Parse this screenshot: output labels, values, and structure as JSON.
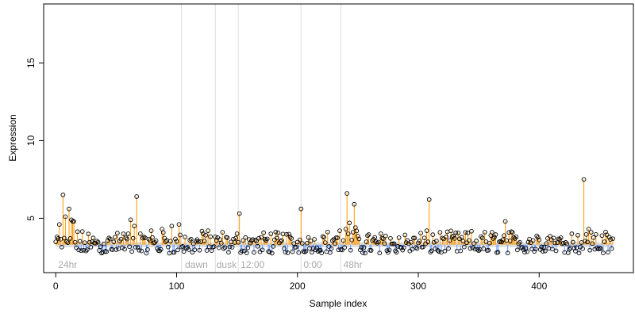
{
  "chart_data": {
    "type": "scatter",
    "title": "",
    "xlabel": "Sample index",
    "ylabel": "Expression",
    "xlim": [
      -10,
      478
    ],
    "ylim": [
      1.5,
      18.8
    ],
    "x_ticks": [
      0,
      100,
      200,
      300,
      400
    ],
    "y_ticks": [
      5,
      10,
      15
    ],
    "baseline": 3.3,
    "grid": false,
    "group_boundaries": [
      104,
      132,
      151,
      203,
      236
    ],
    "group_labels": [
      {
        "label": "24hr",
        "x": 2
      },
      {
        "label": "dawn",
        "x": 107
      },
      {
        "label": "dusk",
        "x": 133
      },
      {
        "label": "12:00",
        "x": 153
      },
      {
        "label": "0:00",
        "x": 205
      },
      {
        "label": "48hr",
        "x": 238
      }
    ],
    "colors": {
      "above_baseline": "#ff9900",
      "below_baseline": "#6699ff",
      "baseline_band": "#dcdcdc",
      "separator": "#dddddd",
      "points": "#000000",
      "group_label": "#aaaaaa"
    },
    "n_points": 462,
    "highlight_points": [
      {
        "x": 2,
        "y": 3.7
      },
      {
        "x": 3,
        "y": 4.6
      },
      {
        "x": 6,
        "y": 6.5
      },
      {
        "x": 8,
        "y": 5.1
      },
      {
        "x": 11,
        "y": 5.6
      },
      {
        "x": 12,
        "y": 3.7
      },
      {
        "x": 13,
        "y": 4.9
      },
      {
        "x": 14,
        "y": 4.8
      },
      {
        "x": 15,
        "y": 4.8
      },
      {
        "x": 60,
        "y": 4.0
      },
      {
        "x": 62,
        "y": 4.9
      },
      {
        "x": 65,
        "y": 4.5
      },
      {
        "x": 67,
        "y": 6.4
      },
      {
        "x": 70,
        "y": 4.0
      },
      {
        "x": 79,
        "y": 4.2
      },
      {
        "x": 88,
        "y": 4.3
      },
      {
        "x": 96,
        "y": 4.5
      },
      {
        "x": 102,
        "y": 4.6
      },
      {
        "x": 122,
        "y": 4.0
      },
      {
        "x": 126,
        "y": 4.2
      },
      {
        "x": 150,
        "y": 4.0
      },
      {
        "x": 152,
        "y": 5.3
      },
      {
        "x": 203,
        "y": 5.6
      },
      {
        "x": 235,
        "y": 4.2
      },
      {
        "x": 240,
        "y": 4.3
      },
      {
        "x": 241,
        "y": 6.6
      },
      {
        "x": 243,
        "y": 4.7
      },
      {
        "x": 246,
        "y": 4.1
      },
      {
        "x": 247,
        "y": 5.9
      },
      {
        "x": 248,
        "y": 4.4
      },
      {
        "x": 309,
        "y": 6.2
      },
      {
        "x": 372,
        "y": 4.8
      },
      {
        "x": 437,
        "y": 7.5
      },
      {
        "x": 441,
        "y": 4.3
      },
      {
        "x": 443,
        "y": 4.1
      }
    ]
  }
}
